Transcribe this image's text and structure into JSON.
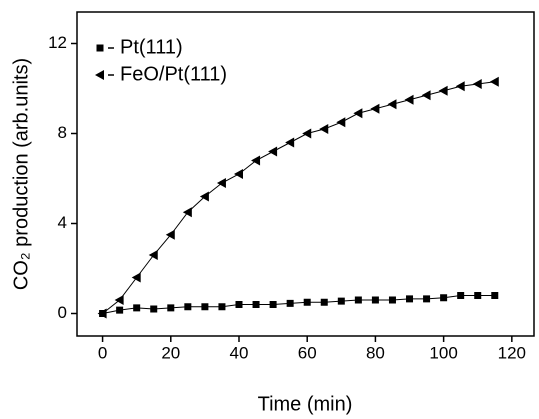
{
  "chart_data": {
    "type": "line",
    "xlabel": "Time (min)",
    "ylabel": "CO₂ production (arb.units)",
    "xlim": [
      -7.5,
      126.5
    ],
    "ylim": [
      -1,
      13.4
    ],
    "xticks": [
      0,
      20,
      40,
      60,
      80,
      100,
      120
    ],
    "yticks": [
      0,
      4,
      8,
      12
    ],
    "x": [
      0,
      5,
      10,
      15,
      20,
      25,
      30,
      35,
      40,
      45,
      50,
      55,
      60,
      65,
      70,
      75,
      80,
      85,
      90,
      95,
      100,
      105,
      110,
      115
    ],
    "series": [
      {
        "name": "Pt(111)",
        "marker": "square",
        "color": "#000000",
        "values": [
          0,
          0.15,
          0.25,
          0.2,
          0.25,
          0.3,
          0.3,
          0.3,
          0.4,
          0.4,
          0.4,
          0.45,
          0.5,
          0.5,
          0.55,
          0.6,
          0.6,
          0.6,
          0.65,
          0.65,
          0.7,
          0.8,
          0.8,
          0.8
        ]
      },
      {
        "name": "FeO/Pt(111)",
        "marker": "triangle-left",
        "color": "#000000",
        "values": [
          0,
          0.6,
          1.6,
          2.6,
          3.5,
          4.5,
          5.2,
          5.8,
          6.2,
          6.8,
          7.2,
          7.6,
          8.0,
          8.2,
          8.5,
          8.9,
          9.1,
          9.3,
          9.5,
          9.7,
          9.9,
          10.1,
          10.2,
          10.3
        ]
      }
    ],
    "legend": "upper-left"
  }
}
